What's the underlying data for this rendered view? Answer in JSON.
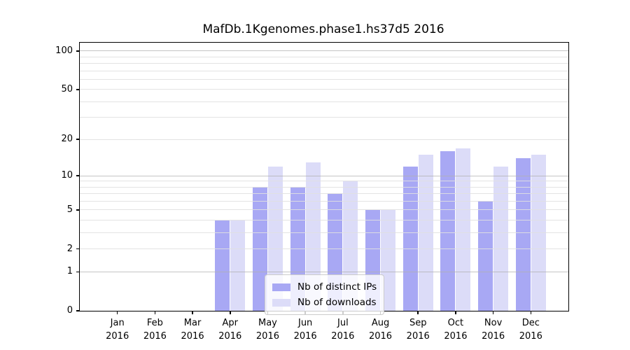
{
  "title": "MafDb.1Kgenomes.phase1.hs37d5 2016",
  "chart_data": {
    "type": "bar",
    "title": "MafDb.1Kgenomes.phase1.hs37d5 2016",
    "xlabel": "",
    "ylabel": "",
    "year": "2016",
    "months": [
      "Jan",
      "Feb",
      "Mar",
      "Apr",
      "May",
      "Jun",
      "Jul",
      "Aug",
      "Sep",
      "Oct",
      "Nov",
      "Dec"
    ],
    "categories": [
      "Jan 2016",
      "Feb 2016",
      "Mar 2016",
      "Apr 2016",
      "May 2016",
      "Jun 2016",
      "Jul 2016",
      "Aug 2016",
      "Sep 2016",
      "Oct 2016",
      "Nov 2016",
      "Dec 2016"
    ],
    "series": [
      {
        "name": "Nb of distinct IPs",
        "color": "#a8a8f4",
        "values": [
          0,
          0,
          0,
          4,
          8,
          8,
          7,
          5,
          12,
          16,
          6,
          14
        ]
      },
      {
        "name": "Nb of downloads",
        "color": "#dcdcf8",
        "values": [
          0,
          0,
          0,
          4,
          12,
          13,
          9,
          5,
          15,
          17,
          12,
          15
        ]
      }
    ],
    "yscale": "log1p",
    "ylim": [
      0,
      116
    ],
    "yticks": [
      0,
      1,
      2,
      5,
      10,
      20,
      50,
      100
    ],
    "grid_major": [
      1,
      10,
      100
    ],
    "grid_minor": [
      2,
      3,
      4,
      5,
      6,
      7,
      8,
      9,
      20,
      30,
      40,
      50,
      60,
      70,
      80,
      90
    ],
    "grid": "on",
    "legend_position": "lower center"
  },
  "colors": {
    "bar_dark": "#a8a8f4",
    "bar_light": "#dcdcf8",
    "grid_major": "#b0b0b0",
    "grid_minor": "#e0e0e0",
    "spine": "#000000",
    "text": "#000000",
    "legend_border": "#cccccc"
  }
}
